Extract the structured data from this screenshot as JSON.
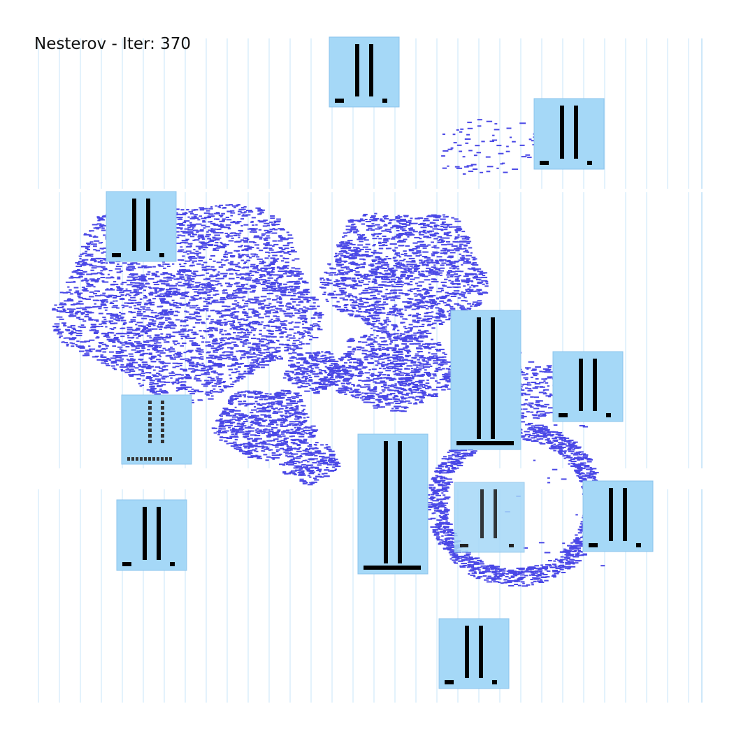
{
  "title": "Nesterov - Iter: 370",
  "colors": {
    "cell": "#4a48e6",
    "macro_fill": "#a5d8f7",
    "macro_edge": "#8cc4ec",
    "pin": "#000000",
    "grid_line": "#a9d6f6",
    "background": "#ffffff"
  },
  "macros": [
    {
      "id": "macro-1",
      "variant": "standard"
    },
    {
      "id": "macro-2",
      "variant": "standard"
    },
    {
      "id": "macro-3",
      "variant": "standard"
    },
    {
      "id": "macro-4",
      "variant": "tall"
    },
    {
      "id": "macro-5",
      "variant": "standard"
    },
    {
      "id": "macro-6",
      "variant": "dotted"
    },
    {
      "id": "macro-7",
      "variant": "tall"
    },
    {
      "id": "macro-8",
      "variant": "faded"
    },
    {
      "id": "macro-9",
      "variant": "standard"
    },
    {
      "id": "macro-10",
      "variant": "standard"
    },
    {
      "id": "macro-11",
      "variant": "standard"
    }
  ]
}
